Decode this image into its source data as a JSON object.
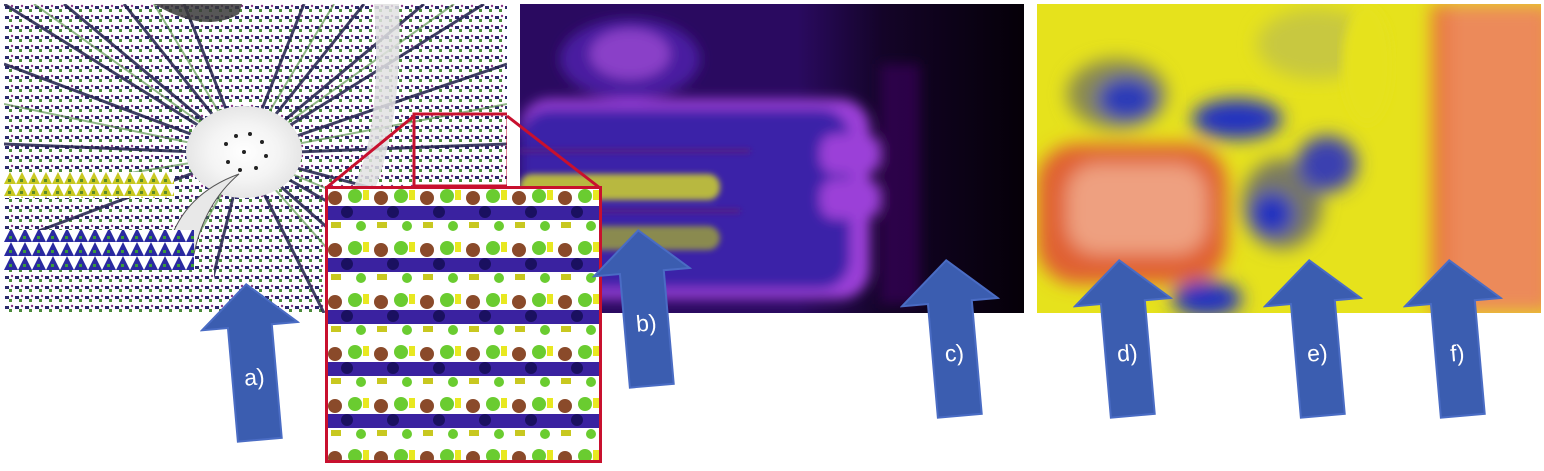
{
  "arrows": [
    {
      "id": "a",
      "label": "a)"
    },
    {
      "id": "b",
      "label": "b)"
    },
    {
      "id": "c",
      "label": "c)"
    },
    {
      "id": "d",
      "label": "d)"
    },
    {
      "id": "e",
      "label": "e)"
    },
    {
      "id": "f",
      "label": "f)"
    }
  ],
  "colors": {
    "arrow_fill": "#3b5db0",
    "arrow_edge": "#4a6cc4",
    "zoom_box": "#c8102e",
    "purple_dark": "#080010",
    "purple_mid": "#3b1fa0",
    "purple_glow": "#9b40d8",
    "heat_yellow": "#e6e21c",
    "heat_orange": "#e8703c",
    "heat_blue": "#2030c0"
  },
  "icons": [
    "arrow-up-icon"
  ]
}
